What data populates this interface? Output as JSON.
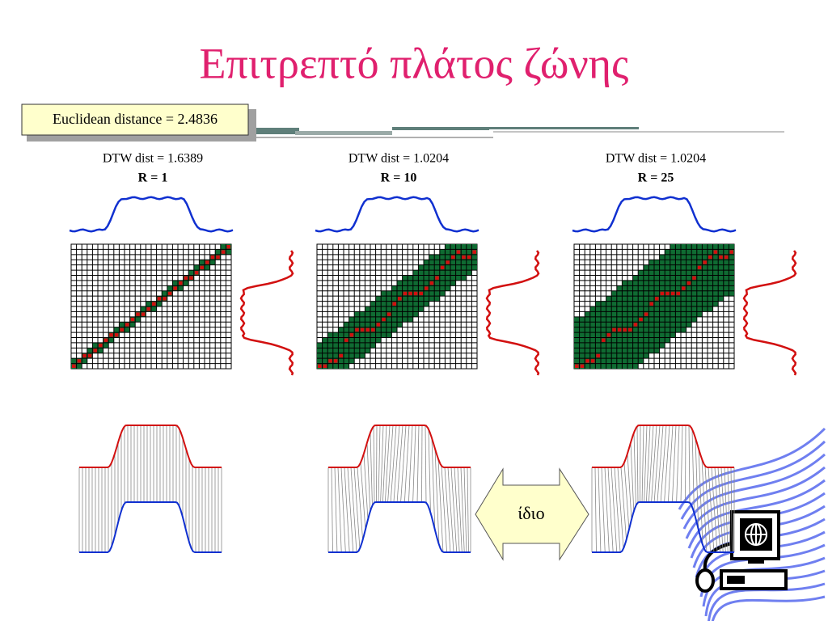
{
  "title": "Επιτρεπτό πλάτος ζώνης",
  "callout": "Euclidean distance = 2.4836",
  "panels": [
    {
      "dtw": "DTW dist = 1.6389",
      "r": "R = 1"
    },
    {
      "dtw": "DTW dist = 1.0204",
      "r": "R = 10"
    },
    {
      "dtw": "DTW dist = 1.0204",
      "r": "R = 25"
    }
  ],
  "arrow_label": "ίδιο"
}
